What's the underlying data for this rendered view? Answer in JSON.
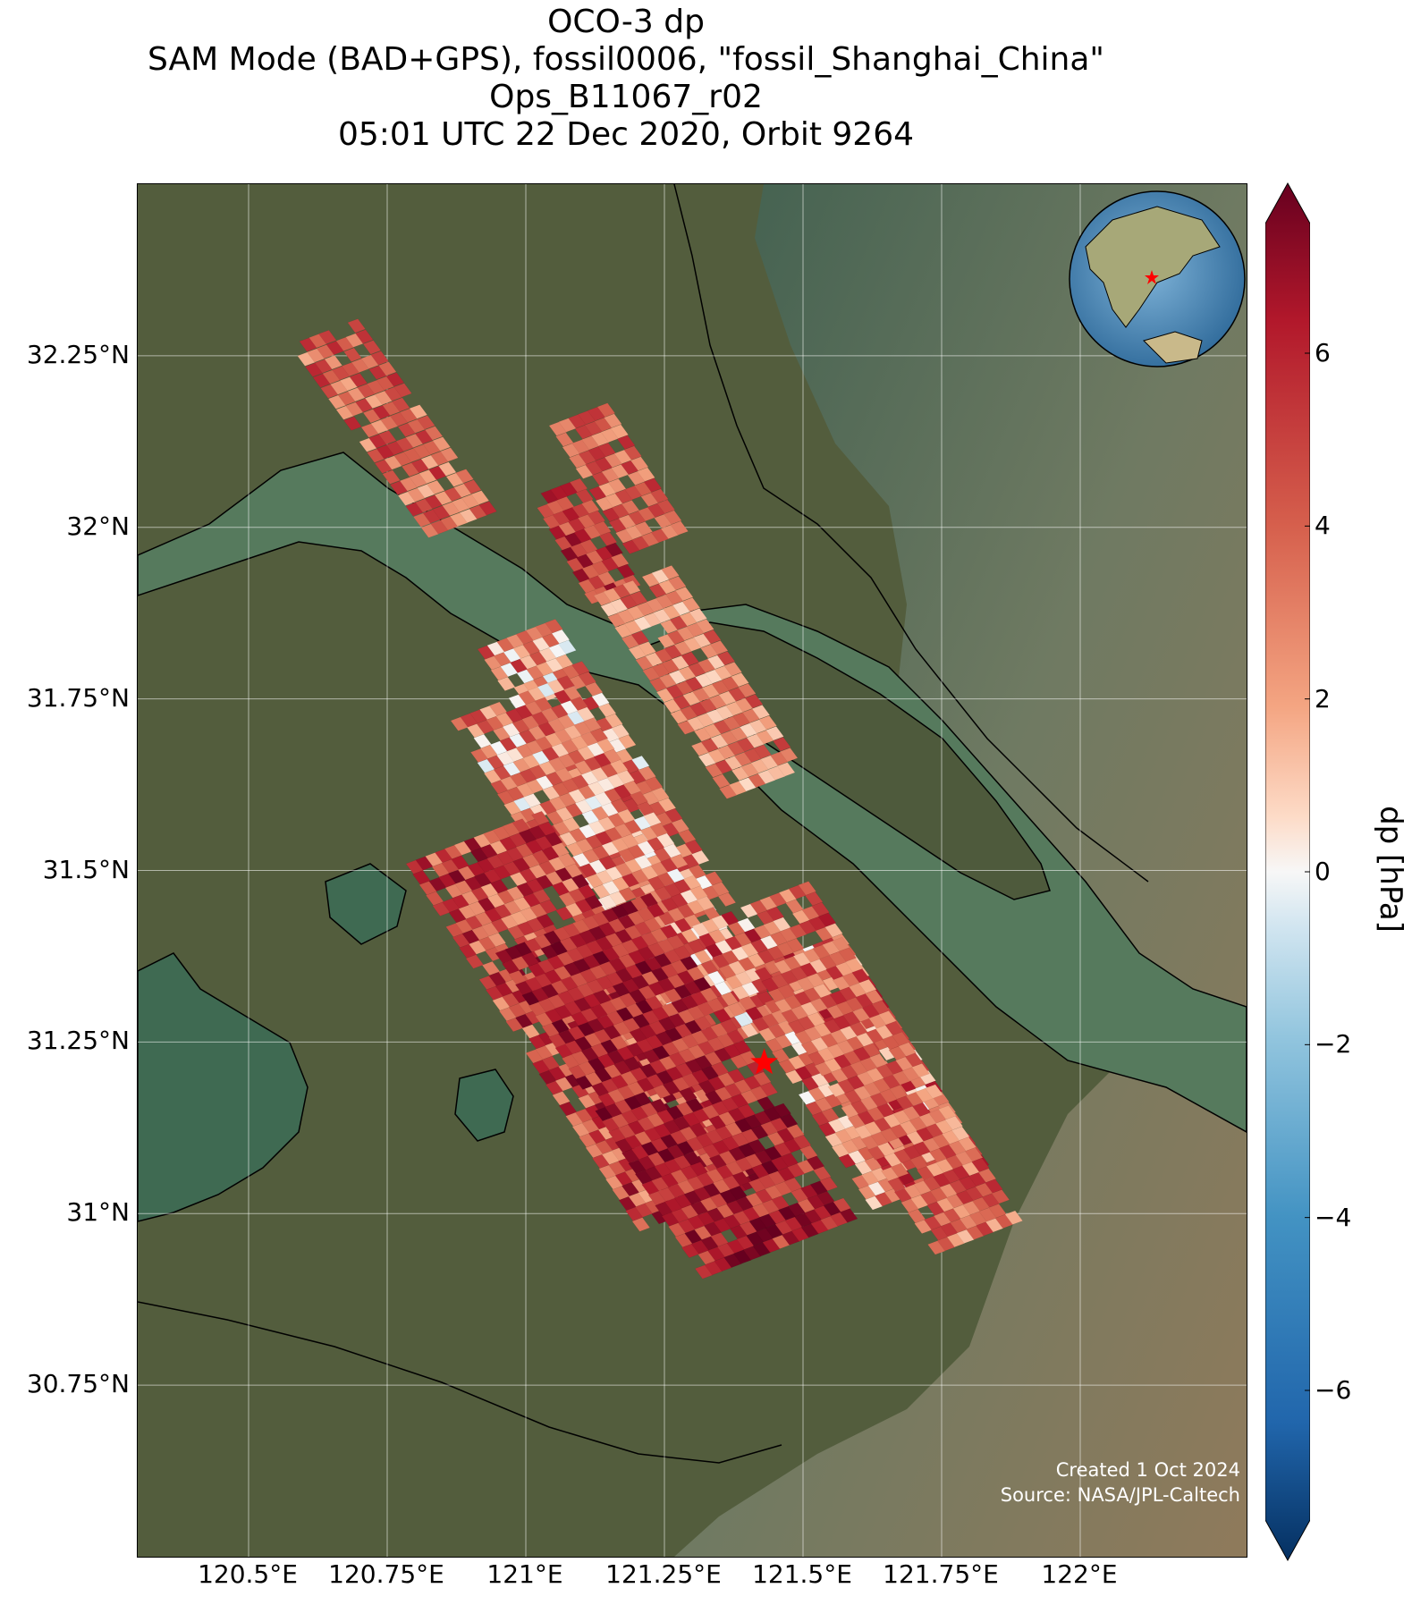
{
  "title": {
    "line1": "OCO-3 dp",
    "line2": "SAM Mode (BAD+GPS), fossil0006, \"fossil_Shanghai_China\"",
    "line3": "Ops_B11067_r02",
    "line4": "05:01 UTC 22 Dec 2020, Orbit 9264"
  },
  "map": {
    "extent": {
      "lon_min": 120.3,
      "lon_max": 122.3,
      "lat_min": 30.5,
      "lat_max": 32.5
    },
    "lat_ticks": [
      {
        "value": 32.25,
        "label": "32.25°N"
      },
      {
        "value": 32.0,
        "label": "32°N"
      },
      {
        "value": 31.75,
        "label": "31.75°N"
      },
      {
        "value": 31.5,
        "label": "31.5°N"
      },
      {
        "value": 31.25,
        "label": "31.25°N"
      },
      {
        "value": 31.0,
        "label": "31°N"
      },
      {
        "value": 30.75,
        "label": "30.75°N"
      }
    ],
    "lon_ticks": [
      {
        "value": 120.5,
        "label": "120.5°E"
      },
      {
        "value": 120.75,
        "label": "120.75°E"
      },
      {
        "value": 121.0,
        "label": "121°E"
      },
      {
        "value": 121.25,
        "label": "121.25°E"
      },
      {
        "value": 121.5,
        "label": "121.5°E"
      },
      {
        "value": 121.75,
        "label": "121.75°E"
      },
      {
        "value": 122.0,
        "label": "122°E"
      }
    ],
    "target": {
      "name": "fossil_Shanghai_China",
      "lon": 121.43,
      "lat": 31.22,
      "marker": "red-star"
    },
    "inset": "globe-locator-east-asia",
    "credit_line1": "Created 1 Oct 2024",
    "credit_line2": "Source: NASA/JPL-Caltech"
  },
  "colorbar": {
    "label": "dp [hPa]",
    "vmin": -7.5,
    "vmax": 7.5,
    "extend": "both",
    "colormap": "RdBu_r",
    "ticks": [
      {
        "value": 6,
        "label": "6"
      },
      {
        "value": 4,
        "label": "4"
      },
      {
        "value": 2,
        "label": "2"
      },
      {
        "value": 0,
        "label": "0"
      },
      {
        "value": -2,
        "label": "−2"
      },
      {
        "value": -4,
        "label": "−4"
      },
      {
        "value": -6,
        "label": "−6"
      }
    ]
  },
  "colors": {
    "land": "#4f5b3c",
    "water": "#8a7a5e",
    "river": "#4f7a60",
    "coast": "#000000",
    "grid": "#ffffff",
    "star": "#ff0000"
  }
}
